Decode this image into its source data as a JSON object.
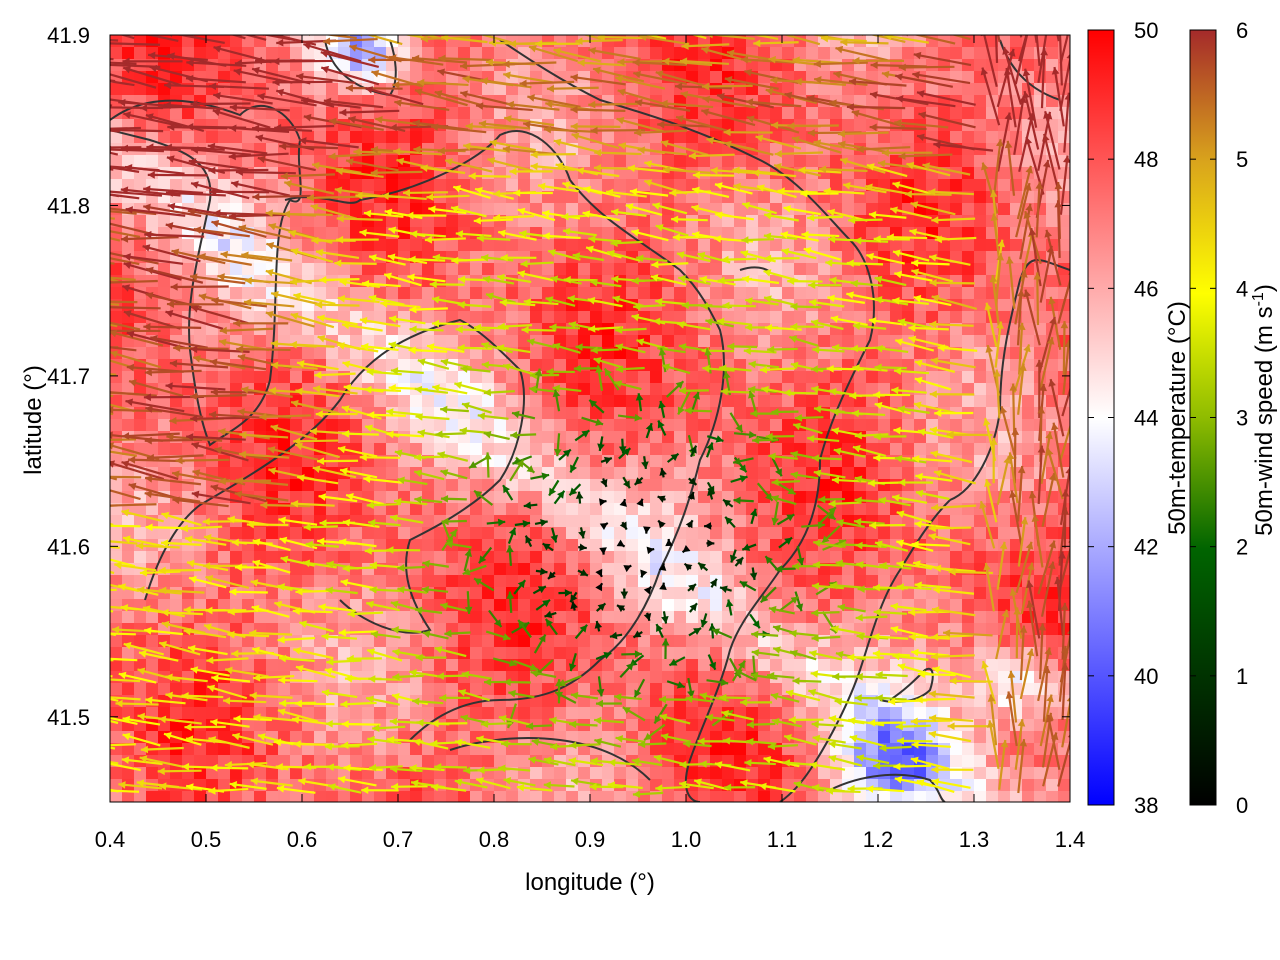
{
  "chart_data": {
    "type": "heatmap",
    "xlabel": "longitude (°)",
    "ylabel": "latitude (°)",
    "xlim": [
      0.4,
      1.4
    ],
    "ylim": [
      41.45,
      41.9
    ],
    "xticks": [
      "0.4",
      "0.5",
      "0.6",
      "0.7",
      "0.8",
      "0.9",
      "1.0",
      "1.1",
      "1.2",
      "1.3",
      "1.4"
    ],
    "yticks": [
      "41.5",
      "41.6",
      "41.7",
      "41.8",
      "41.9"
    ],
    "layers": [
      "50m-temperature shaded field",
      "50m-wind vectors colored by speed",
      "terrain contour lines"
    ],
    "temperature_colorbar": {
      "label": "50m-temperature (°C)",
      "range": [
        38,
        50
      ],
      "ticks": [
        "38",
        "40",
        "42",
        "44",
        "46",
        "48",
        "50"
      ],
      "colors": [
        "#0000ff",
        "#ffffff",
        "#ff0000"
      ]
    },
    "wind_colorbar": {
      "label_main": "50m-wind speed (m s",
      "label_sup": "-1",
      "label_end": ")",
      "range": [
        0,
        6
      ],
      "ticks": [
        "0",
        "1",
        "2",
        "3",
        "4",
        "5",
        "6"
      ],
      "colors": [
        "#000000",
        "#006400",
        "#8fbc00",
        "#ffff00",
        "#d9a41c",
        "#a52a2a"
      ]
    },
    "contour_color": "#333333",
    "wind_direction": "predominantly easterly (arrows point west) with strong >5 m/s flow over north-west and east, weak converging winds in the central low area",
    "temperature_pattern": "mostly 46–50 °C, cooler white/blue spots near (0.66, 41.89) and (1.22, 41.47)"
  }
}
